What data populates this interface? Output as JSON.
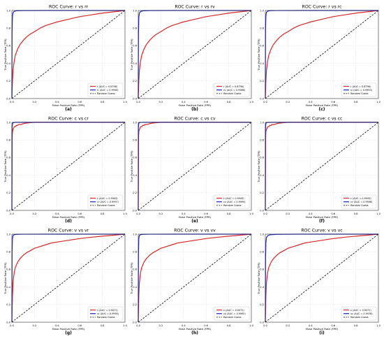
{
  "chart_data": [
    {
      "type": "line",
      "label": "(a)",
      "title": "ROC Curve: r vs rr",
      "xlabel": "False Positive Rate (FPR)",
      "ylabel": "True Positive Rate (TPR)",
      "xlim": [
        0,
        1
      ],
      "ylim": [
        0,
        1
      ],
      "xticks": [
        "0.0",
        "0.2",
        "0.4",
        "0.6",
        "0.8",
        "1.0"
      ],
      "yticks": [
        "0.0",
        "0.2",
        "0.4",
        "0.6",
        "0.8",
        "1.0"
      ],
      "legend_position": "lower-right",
      "series": [
        {
          "name": "r (AUC = 0.8796)",
          "color": "#d62728",
          "curve": "medium",
          "x": [
            0,
            0.005,
            0.01,
            0.02,
            0.03,
            0.05,
            0.07,
            0.1,
            0.13,
            0.16,
            0.2,
            0.25,
            0.3,
            0.35,
            0.4,
            0.5,
            0.6,
            0.7,
            0.8,
            0.9,
            0.95,
            1
          ],
          "y": [
            0,
            0.2,
            0.32,
            0.42,
            0.49,
            0.56,
            0.61,
            0.66,
            0.7,
            0.73,
            0.76,
            0.8,
            0.83,
            0.85,
            0.87,
            0.9,
            0.93,
            0.95,
            0.97,
            0.985,
            0.992,
            1
          ]
        },
        {
          "name": "rr (AUC = 0.9990)",
          "color": "#1f1fcc",
          "curve": "high",
          "x": [
            0,
            0.002,
            0.005,
            0.01,
            0.02,
            0.04,
            0.1,
            0.3,
            0.6,
            1
          ],
          "y": [
            0,
            0.75,
            0.93,
            0.975,
            0.99,
            0.997,
            0.999,
            1,
            1,
            1
          ]
        },
        {
          "name": "Random Guess",
          "color": "#000000",
          "dashed": true,
          "x": [
            0,
            1
          ],
          "y": [
            0,
            1
          ]
        }
      ]
    },
    {
      "type": "line",
      "label": "(b)",
      "title": "ROC Curve: r vs rv",
      "xlabel": "False Positive Rate (FPR)",
      "ylabel": "True Positive Rate (TPR)",
      "xlim": [
        0,
        1
      ],
      "ylim": [
        0,
        1
      ],
      "xticks": [
        "0.0",
        "0.2",
        "0.4",
        "0.6",
        "0.8",
        "1.0"
      ],
      "yticks": [
        "0.0",
        "0.2",
        "0.4",
        "0.6",
        "0.8",
        "1.0"
      ],
      "legend_position": "lower-right",
      "series": [
        {
          "name": "r (AUC = 0.8796)",
          "color": "#d62728",
          "curve": "medium",
          "x": [
            0,
            0.005,
            0.01,
            0.02,
            0.03,
            0.05,
            0.07,
            0.1,
            0.13,
            0.16,
            0.2,
            0.25,
            0.3,
            0.35,
            0.4,
            0.5,
            0.6,
            0.7,
            0.8,
            0.9,
            0.95,
            1
          ],
          "y": [
            0,
            0.2,
            0.32,
            0.42,
            0.49,
            0.56,
            0.61,
            0.66,
            0.7,
            0.73,
            0.76,
            0.8,
            0.83,
            0.85,
            0.87,
            0.9,
            0.93,
            0.95,
            0.97,
            0.985,
            0.992,
            1
          ]
        },
        {
          "name": "rv (AUC = 0.9986)",
          "color": "#1f1fcc",
          "curve": "high",
          "x": [
            0,
            0.002,
            0.005,
            0.01,
            0.02,
            0.04,
            0.1,
            0.3,
            0.6,
            1
          ],
          "y": [
            0,
            0.74,
            0.92,
            0.97,
            0.988,
            0.996,
            0.999,
            1,
            1,
            1
          ]
        },
        {
          "name": "Random Guess",
          "color": "#000000",
          "dashed": true,
          "x": [
            0,
            1
          ],
          "y": [
            0,
            1
          ]
        }
      ]
    },
    {
      "type": "line",
      "label": "(c)",
      "title": "ROC Curve: r vs rc",
      "xlabel": "False Positive Rate (FPR)",
      "ylabel": "True Positive Rate (TPR)",
      "xlim": [
        0,
        1
      ],
      "ylim": [
        0,
        1
      ],
      "xticks": [
        "0.0",
        "0.2",
        "0.4",
        "0.6",
        "0.8",
        "1.0"
      ],
      "yticks": [
        "0.0",
        "0.2",
        "0.4",
        "0.6",
        "0.8",
        "1.0"
      ],
      "legend_position": "lower-right",
      "series": [
        {
          "name": "r (AUC = 0.8796)",
          "color": "#d62728",
          "curve": "medium",
          "x": [
            0,
            0.005,
            0.01,
            0.02,
            0.03,
            0.05,
            0.07,
            0.1,
            0.13,
            0.16,
            0.2,
            0.25,
            0.3,
            0.35,
            0.4,
            0.5,
            0.6,
            0.7,
            0.8,
            0.9,
            0.95,
            1
          ],
          "y": [
            0,
            0.2,
            0.32,
            0.42,
            0.49,
            0.56,
            0.61,
            0.66,
            0.7,
            0.73,
            0.76,
            0.8,
            0.83,
            0.85,
            0.87,
            0.9,
            0.93,
            0.95,
            0.97,
            0.985,
            0.992,
            1
          ]
        },
        {
          "name": "rc (AUC = 0.9993)",
          "color": "#1f1fcc",
          "curve": "high",
          "x": [
            0,
            0.002,
            0.005,
            0.01,
            0.02,
            0.04,
            0.1,
            0.3,
            0.6,
            1
          ],
          "y": [
            0,
            0.78,
            0.94,
            0.98,
            0.992,
            0.998,
            0.9995,
            1,
            1,
            1
          ]
        },
        {
          "name": "Random Guess",
          "color": "#000000",
          "dashed": true,
          "x": [
            0,
            1
          ],
          "y": [
            0,
            1
          ]
        }
      ]
    },
    {
      "type": "line",
      "label": "(d)",
      "title": "ROC Curve: c vs cr",
      "xlabel": "False Positive Rate (FPR)",
      "ylabel": "True Positive Rate (TPR)",
      "xlim": [
        0,
        1
      ],
      "ylim": [
        0,
        1
      ],
      "xticks": [
        "0.0",
        "0.2",
        "0.4",
        "0.6",
        "0.8",
        "1.0"
      ],
      "yticks": [
        "0.0",
        "0.2",
        "0.4",
        "0.6",
        "0.8",
        "1.0"
      ],
      "legend_position": "lower-right",
      "series": [
        {
          "name": "c (AUC = 0.9943)",
          "color": "#d62728",
          "curve": "step",
          "x": [
            0,
            0.003,
            0.006,
            0.01,
            0.015,
            0.02,
            0.03,
            0.04,
            0.05,
            0.06,
            0.08,
            0.1,
            0.12,
            0.15,
            0.2,
            0.4,
            1
          ],
          "y": [
            0,
            0.85,
            0.9,
            0.92,
            0.93,
            0.95,
            0.95,
            0.965,
            0.965,
            0.975,
            0.975,
            0.985,
            0.99,
            0.995,
            1,
            1,
            1
          ]
        },
        {
          "name": "cr (AUC = 0.9997)",
          "color": "#1f1fcc",
          "curve": "high",
          "x": [
            0,
            0.001,
            0.003,
            0.006,
            0.01,
            0.02,
            0.05,
            0.2,
            1
          ],
          "y": [
            0,
            0.9,
            0.96,
            0.985,
            0.995,
            0.999,
            1,
            1,
            1
          ]
        },
        {
          "name": "Random Guess",
          "color": "#000000",
          "dashed": true,
          "x": [
            0,
            1
          ],
          "y": [
            0,
            1
          ]
        }
      ]
    },
    {
      "type": "line",
      "label": "(e)",
      "title": "ROC Curve: c vs cv",
      "xlabel": "False Positive Rate (FPR)",
      "ylabel": "True Positive Rate (TPR)",
      "xlim": [
        0,
        1
      ],
      "ylim": [
        0,
        1
      ],
      "xticks": [
        "0.0",
        "0.2",
        "0.4",
        "0.6",
        "0.8",
        "1.0"
      ],
      "yticks": [
        "0.0",
        "0.2",
        "0.4",
        "0.6",
        "0.8",
        "1.0"
      ],
      "legend_position": "lower-right",
      "series": [
        {
          "name": "c (AUC = 0.9943)",
          "color": "#d62728",
          "curve": "step",
          "x": [
            0,
            0.003,
            0.006,
            0.01,
            0.015,
            0.02,
            0.03,
            0.04,
            0.05,
            0.06,
            0.08,
            0.1,
            0.12,
            0.15,
            0.2,
            0.4,
            1
          ],
          "y": [
            0,
            0.85,
            0.9,
            0.92,
            0.93,
            0.95,
            0.95,
            0.965,
            0.965,
            0.975,
            0.975,
            0.985,
            0.99,
            0.995,
            1,
            1,
            1
          ]
        },
        {
          "name": "cv (AUC = 0.9999)",
          "color": "#1f1fcc",
          "curve": "high",
          "x": [
            0,
            0.001,
            0.003,
            0.006,
            0.01,
            0.02,
            0.05,
            0.2,
            1
          ],
          "y": [
            0,
            0.93,
            0.975,
            0.99,
            0.997,
            0.9995,
            1,
            1,
            1
          ]
        },
        {
          "name": "Random Guess",
          "color": "#000000",
          "dashed": true,
          "x": [
            0,
            1
          ],
          "y": [
            0,
            1
          ]
        }
      ]
    },
    {
      "type": "line",
      "label": "(f)",
      "title": "ROC Curve: c vs cc",
      "xlabel": "False Positive Rate (FPR)",
      "ylabel": "True Positive Rate (TPR)",
      "xlim": [
        0,
        1
      ],
      "ylim": [
        0,
        1
      ],
      "xticks": [
        "0.0",
        "0.2",
        "0.4",
        "0.6",
        "0.8",
        "1.0"
      ],
      "yticks": [
        "0.0",
        "0.2",
        "0.4",
        "0.6",
        "0.8",
        "1.0"
      ],
      "legend_position": "lower-right",
      "series": [
        {
          "name": "c (AUC = 0.9943)",
          "color": "#d62728",
          "curve": "step",
          "x": [
            0,
            0.003,
            0.006,
            0.01,
            0.015,
            0.02,
            0.03,
            0.04,
            0.05,
            0.06,
            0.08,
            0.1,
            0.12,
            0.15,
            0.2,
            0.4,
            1
          ],
          "y": [
            0,
            0.85,
            0.9,
            0.92,
            0.93,
            0.95,
            0.95,
            0.965,
            0.965,
            0.975,
            0.975,
            0.985,
            0.99,
            0.995,
            1,
            1,
            1
          ]
        },
        {
          "name": "cc (AUC = 0.9998)",
          "color": "#1f1fcc",
          "curve": "high",
          "x": [
            0,
            0.001,
            0.003,
            0.006,
            0.01,
            0.02,
            0.05,
            0.2,
            1
          ],
          "y": [
            0,
            0.91,
            0.97,
            0.988,
            0.996,
            0.999,
            1,
            1,
            1
          ]
        },
        {
          "name": "Random Guess",
          "color": "#000000",
          "dashed": true,
          "x": [
            0,
            1
          ],
          "y": [
            0,
            1
          ]
        }
      ]
    },
    {
      "type": "line",
      "label": "(g)",
      "title": "ROC Curve: v vs vr",
      "xlabel": "False Positive Rate (FPR)",
      "ylabel": "True Positive Rate (TPR)",
      "xlim": [
        0,
        1
      ],
      "ylim": [
        0,
        1
      ],
      "xticks": [
        "0.0",
        "0.2",
        "0.4",
        "0.6",
        "0.8",
        "1.0"
      ],
      "yticks": [
        "0.0",
        "0.2",
        "0.4",
        "0.6",
        "0.8",
        "1.0"
      ],
      "legend_position": "lower-right",
      "series": [
        {
          "name": "v (AUC = 0.9071)",
          "color": "#d62728",
          "curve": "medium",
          "x": [
            0,
            0.005,
            0.01,
            0.02,
            0.03,
            0.05,
            0.07,
            0.1,
            0.13,
            0.16,
            0.2,
            0.25,
            0.3,
            0.35,
            0.4,
            0.5,
            0.6,
            0.7,
            0.8,
            0.9,
            0.95,
            1
          ],
          "y": [
            0,
            0.3,
            0.45,
            0.56,
            0.62,
            0.68,
            0.72,
            0.76,
            0.79,
            0.81,
            0.84,
            0.86,
            0.88,
            0.9,
            0.91,
            0.93,
            0.95,
            0.965,
            0.977,
            0.988,
            0.994,
            1
          ]
        },
        {
          "name": "vr (AUC = 0.9995)",
          "color": "#1f1fcc",
          "curve": "high",
          "x": [
            0,
            0.002,
            0.005,
            0.01,
            0.02,
            0.04,
            0.1,
            0.3,
            0.6,
            1
          ],
          "y": [
            0,
            0.8,
            0.95,
            0.985,
            0.994,
            0.998,
            0.9995,
            1,
            1,
            1
          ]
        },
        {
          "name": "Random Guess",
          "color": "#000000",
          "dashed": true,
          "x": [
            0,
            1
          ],
          "y": [
            0,
            1
          ]
        }
      ]
    },
    {
      "type": "line",
      "label": "(h)",
      "title": "ROC Curve: v vs vv",
      "xlabel": "False Positive Rate (FPR)",
      "ylabel": "True Positive Rate (TPR)",
      "xlim": [
        0,
        1
      ],
      "ylim": [
        0,
        1
      ],
      "xticks": [
        "0.0",
        "0.2",
        "0.4",
        "0.6",
        "0.8",
        "1.0"
      ],
      "yticks": [
        "0.0",
        "0.2",
        "0.4",
        "0.6",
        "0.8",
        "1.0"
      ],
      "legend_position": "lower-right",
      "series": [
        {
          "name": "v (AUC = 0.9071)",
          "color": "#d62728",
          "curve": "medium",
          "x": [
            0,
            0.005,
            0.01,
            0.02,
            0.03,
            0.05,
            0.07,
            0.1,
            0.13,
            0.16,
            0.2,
            0.25,
            0.3,
            0.35,
            0.4,
            0.5,
            0.6,
            0.7,
            0.8,
            0.9,
            0.95,
            1
          ],
          "y": [
            0,
            0.3,
            0.45,
            0.56,
            0.62,
            0.68,
            0.72,
            0.76,
            0.79,
            0.81,
            0.84,
            0.86,
            0.88,
            0.9,
            0.91,
            0.93,
            0.95,
            0.965,
            0.977,
            0.988,
            0.994,
            1
          ]
        },
        {
          "name": "vv (AUC = 0.9995)",
          "color": "#1f1fcc",
          "curve": "high",
          "x": [
            0,
            0.002,
            0.005,
            0.01,
            0.02,
            0.04,
            0.1,
            0.3,
            0.6,
            1
          ],
          "y": [
            0,
            0.8,
            0.95,
            0.985,
            0.994,
            0.998,
            0.9995,
            1,
            1,
            1
          ]
        },
        {
          "name": "Random Guess",
          "color": "#000000",
          "dashed": true,
          "x": [
            0,
            1
          ],
          "y": [
            0,
            1
          ]
        }
      ]
    },
    {
      "type": "line",
      "label": "(i)",
      "title": "ROC Curve: v vs vc",
      "xlabel": "False Positive Rate (FPR)",
      "ylabel": "True Positive Rate (TPR)",
      "xlim": [
        0,
        1
      ],
      "ylim": [
        0,
        1
      ],
      "xticks": [
        "0.0",
        "0.2",
        "0.4",
        "0.6",
        "0.8",
        "1.0"
      ],
      "yticks": [
        "0.0",
        "0.2",
        "0.4",
        "0.6",
        "0.8",
        "1.0"
      ],
      "legend_position": "lower-right",
      "series": [
        {
          "name": "v (AUC = 0.9071)",
          "color": "#d62728",
          "curve": "medium",
          "x": [
            0,
            0.005,
            0.01,
            0.02,
            0.03,
            0.05,
            0.07,
            0.1,
            0.13,
            0.16,
            0.2,
            0.25,
            0.3,
            0.35,
            0.4,
            0.5,
            0.6,
            0.7,
            0.8,
            0.9,
            0.95,
            1
          ],
          "y": [
            0,
            0.3,
            0.45,
            0.56,
            0.62,
            0.68,
            0.72,
            0.76,
            0.79,
            0.81,
            0.84,
            0.86,
            0.88,
            0.9,
            0.91,
            0.93,
            0.95,
            0.965,
            0.977,
            0.988,
            0.994,
            1
          ]
        },
        {
          "name": "vc (AUC = 0.9978)",
          "color": "#1f1fcc",
          "curve": "high",
          "x": [
            0,
            0.002,
            0.005,
            0.01,
            0.02,
            0.04,
            0.1,
            0.3,
            0.6,
            1
          ],
          "y": [
            0,
            0.72,
            0.9,
            0.96,
            0.982,
            0.993,
            0.998,
            1,
            1,
            1
          ]
        },
        {
          "name": "Random Guess",
          "color": "#000000",
          "dashed": true,
          "x": [
            0,
            1
          ],
          "y": [
            0,
            1
          ]
        }
      ]
    }
  ]
}
